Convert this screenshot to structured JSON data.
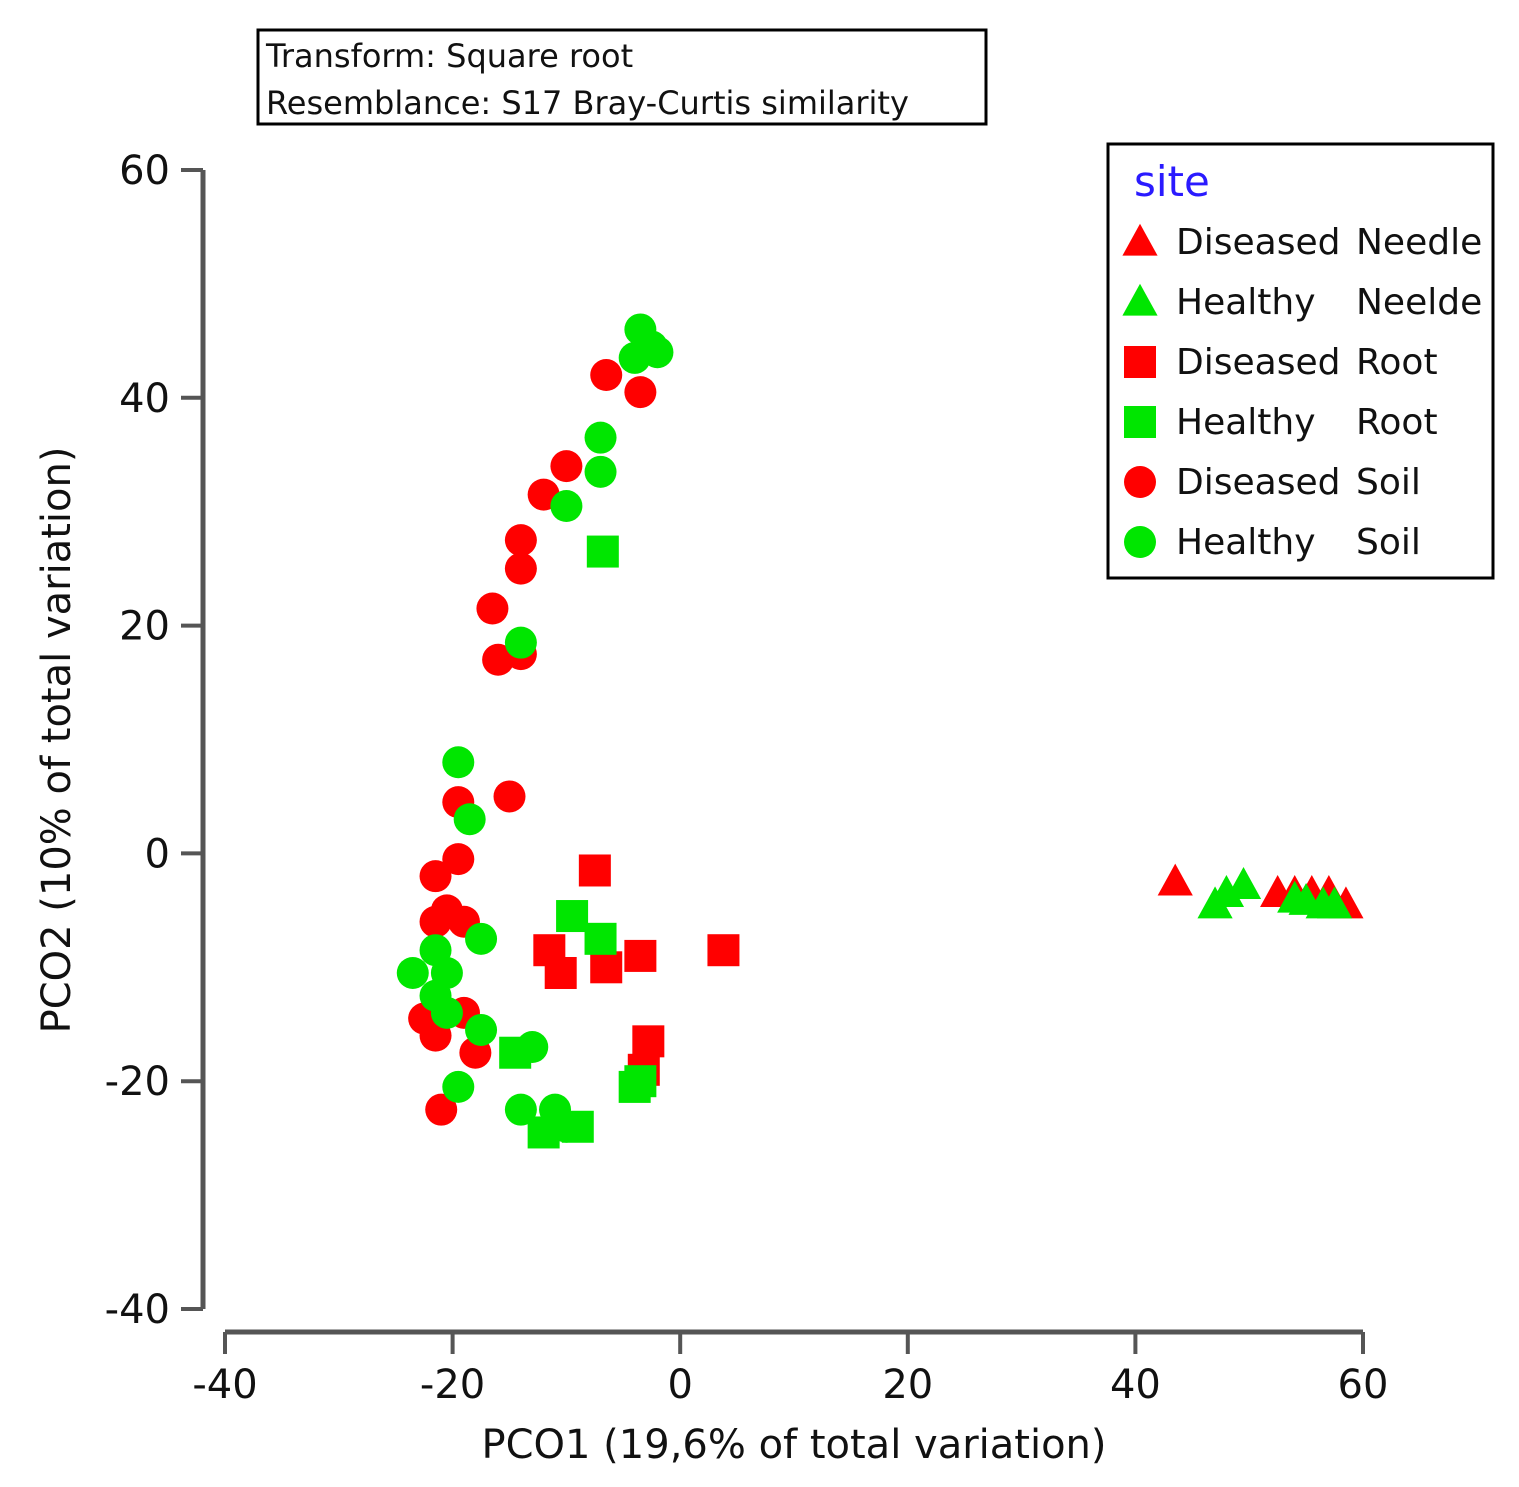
{
  "chart_data": {
    "type": "scatter",
    "info_box": {
      "transform": "Transform: Square root",
      "resemblance": "Resemblance: S17 Bray-Curtis similarity"
    },
    "xlabel": "PCO1 (19,6% of total variation)",
    "ylabel": "PCO2 (10% of total variation)",
    "xlim": [
      -40,
      60
    ],
    "ylim": [
      -40,
      60
    ],
    "x_ticks": [
      -40,
      -20,
      0,
      20,
      40,
      60
    ],
    "y_ticks": [
      -40,
      -20,
      0,
      20,
      40,
      60
    ],
    "x_tick_labels": [
      "-40",
      "-20",
      "0",
      "20",
      "40",
      "60"
    ],
    "y_tick_labels": [
      "-40",
      "-20",
      "0",
      "20",
      "40",
      "60"
    ],
    "legend": {
      "title": "site",
      "title_color": "#2a1aff",
      "placement": "top-right"
    },
    "colors": {
      "diseased": "#ff0000",
      "healthy": "#00e600"
    },
    "series": [
      {
        "name": "Diseased Needle",
        "label_status": "Diseased",
        "label_tissue": "Needle",
        "marker": "triangle",
        "color": "#ff0000",
        "points": [
          [
            43.5,
            -2.5
          ],
          [
            52.5,
            -3.5
          ],
          [
            54,
            -3.5
          ],
          [
            55.5,
            -3.5
          ],
          [
            57,
            -3.5
          ],
          [
            58.5,
            -4.5
          ]
        ]
      },
      {
        "name": "Healthy Neelde",
        "label_status": "Healthy",
        "label_tissue": "Neelde",
        "marker": "triangle",
        "color": "#00e600",
        "points": [
          [
            47,
            -4.5
          ],
          [
            48,
            -3.5
          ],
          [
            49.5,
            -2.8
          ],
          [
            54,
            -4
          ],
          [
            55,
            -4.2
          ],
          [
            56.5,
            -4.5
          ],
          [
            57.5,
            -4.5
          ]
        ]
      },
      {
        "name": "Diseased Root",
        "label_status": "Diseased",
        "label_tissue": "Root",
        "marker": "square",
        "color": "#ff0000",
        "points": [
          [
            -7.5,
            -1.5
          ],
          [
            -11.5,
            -8.5
          ],
          [
            -10.5,
            -10.5
          ],
          [
            -6.5,
            -10
          ],
          [
            -3.5,
            -9
          ],
          [
            3.8,
            -8.5
          ],
          [
            -2.8,
            -16.5
          ],
          [
            -3.2,
            -19
          ]
        ]
      },
      {
        "name": "Healthy Root",
        "label_status": "Healthy",
        "label_tissue": "Root",
        "marker": "square",
        "color": "#00e600",
        "points": [
          [
            -6.8,
            26.5
          ],
          [
            -9.5,
            -5.5
          ],
          [
            -7,
            -7.5
          ],
          [
            -14.5,
            -17.5
          ],
          [
            -12,
            -24.5
          ],
          [
            -9,
            -24
          ],
          [
            -4,
            -20.5
          ],
          [
            -3.5,
            -20
          ]
        ]
      },
      {
        "name": "Diseased Soil",
        "label_status": "Diseased",
        "label_tissue": "Soil",
        "marker": "circle",
        "color": "#ff0000",
        "points": [
          [
            -6.5,
            42
          ],
          [
            -3.5,
            40.5
          ],
          [
            -10,
            34
          ],
          [
            -12,
            31.5
          ],
          [
            -14,
            27.5
          ],
          [
            -14,
            25
          ],
          [
            -16.5,
            21.5
          ],
          [
            -16,
            17
          ],
          [
            -14,
            17.5
          ],
          [
            -19.5,
            4.5
          ],
          [
            -15,
            5
          ],
          [
            -19.5,
            -0.5
          ],
          [
            -21.5,
            -2
          ],
          [
            -20.5,
            -5
          ],
          [
            -21.5,
            -6
          ],
          [
            -19,
            -6
          ],
          [
            -22.5,
            -14.5
          ],
          [
            -21.5,
            -16
          ],
          [
            -19,
            -14
          ],
          [
            -18,
            -17.5
          ],
          [
            -21,
            -22.5
          ]
        ]
      },
      {
        "name": "Healthy Soil",
        "label_status": "Healthy",
        "label_tissue": "Soil",
        "marker": "circle",
        "color": "#00e600",
        "points": [
          [
            -3.5,
            46
          ],
          [
            -2.5,
            44.5
          ],
          [
            -4,
            43.5
          ],
          [
            -2,
            44
          ],
          [
            -7,
            36.5
          ],
          [
            -7,
            33.5
          ],
          [
            -10,
            30.5
          ],
          [
            -14,
            18.5
          ],
          [
            -19.5,
            8
          ],
          [
            -18.5,
            3
          ],
          [
            -17.5,
            -7.5
          ],
          [
            -23.5,
            -10.5
          ],
          [
            -21.5,
            -8.5
          ],
          [
            -20.5,
            -10.5
          ],
          [
            -21.5,
            -12.5
          ],
          [
            -20.5,
            -14
          ],
          [
            -17.5,
            -15.5
          ],
          [
            -19.5,
            -20.5
          ],
          [
            -13,
            -17
          ],
          [
            -14,
            -22.5
          ],
          [
            -11,
            -22.5
          ],
          [
            -10,
            -24
          ]
        ]
      }
    ]
  }
}
